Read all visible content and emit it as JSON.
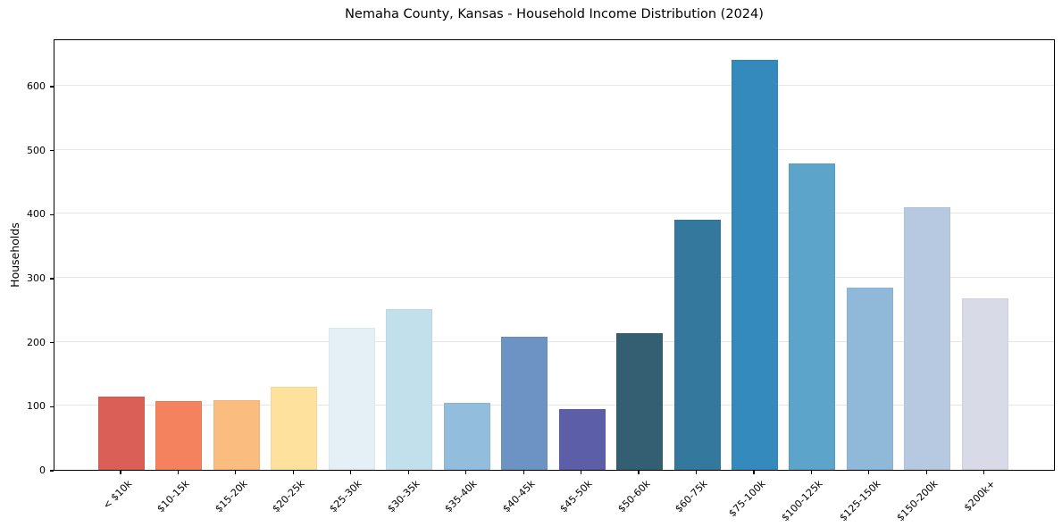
{
  "chart_data": {
    "type": "bar",
    "title": "Nemaha County, Kansas - Household Income Distribution (2024)",
    "xlabel": "",
    "ylabel": "Households",
    "categories": [
      "< $10k",
      "$10-15k",
      "$15-20k",
      "$20-25k",
      "$25-30k",
      "$30-35k",
      "$35-40k",
      "$40-45k",
      "$45-50k",
      "$50-60k",
      "$60-75k",
      "$75-100k",
      "$100-125k",
      "$125-150k",
      "$150-200k",
      "$200k+"
    ],
    "values": [
      114,
      107,
      109,
      130,
      222,
      251,
      104,
      208,
      95,
      213,
      391,
      641,
      479,
      285,
      410,
      268
    ],
    "bar_colors": [
      "#d95f57",
      "#f4825e",
      "#fabc7f",
      "#fde19c",
      "#e4f0f5",
      "#c2e0ec",
      "#93bddc",
      "#6c93c4",
      "#5c5fa8",
      "#345f73",
      "#35789e",
      "#358abd",
      "#5ca4c9",
      "#90b8d8",
      "#b6c9e0",
      "#d9dae8"
    ],
    "yticks": [
      0,
      100,
      200,
      300,
      400,
      500,
      600
    ],
    "ylim": [
      0,
      674
    ],
    "grid": "horizontal-only",
    "gridline_color": "#e7e7e7",
    "spine_color": "#000000",
    "background_color": "#ffffff",
    "legend": "none",
    "x_tick_label_rotation_deg": 45
  }
}
